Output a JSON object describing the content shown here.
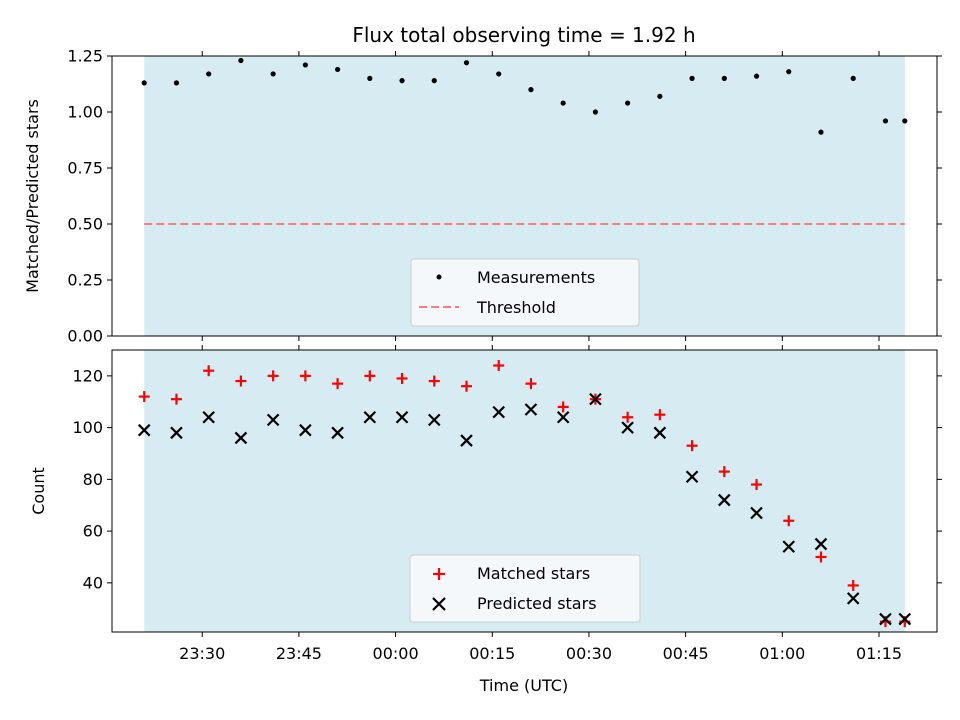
{
  "chart_data": [
    {
      "type": "scatter",
      "title": "Flux total observing time = 1.92 h",
      "ylabel": "Matched/Predicted stars",
      "xlabel": "",
      "ylim": [
        0,
        1.25
      ],
      "xlim": [
        "23:16",
        "01:24"
      ],
      "observing_window": [
        "23:21",
        "01:19"
      ],
      "yticks": [
        "0.00",
        "0.25",
        "0.50",
        "0.75",
        "1.00",
        "1.25"
      ],
      "legend_placement": "lower-center",
      "series": [
        {
          "name": "Measurements",
          "color": "#000000",
          "marker": "dot",
          "x": [
            "23:21",
            "23:26",
            "23:31",
            "23:36",
            "23:41",
            "23:46",
            "23:51",
            "23:56",
            "00:01",
            "00:06",
            "00:11",
            "00:16",
            "00:21",
            "00:26",
            "00:31",
            "00:36",
            "00:41",
            "00:46",
            "00:51",
            "00:56",
            "01:01",
            "01:06",
            "01:11",
            "01:16",
            "01:19"
          ],
          "y": [
            1.13,
            1.13,
            1.17,
            1.23,
            1.17,
            1.21,
            1.19,
            1.15,
            1.14,
            1.14,
            1.22,
            1.17,
            1.1,
            1.04,
            1.0,
            1.04,
            1.07,
            1.15,
            1.15,
            1.16,
            1.18,
            0.91,
            1.15,
            0.96,
            0.96
          ]
        },
        {
          "name": "Threshold",
          "color": "#f08080",
          "style": "dashed",
          "y": 0.5
        }
      ]
    },
    {
      "type": "scatter",
      "xlabel": "Time (UTC)",
      "ylabel": "Count",
      "ylim": [
        21,
        130
      ],
      "xlim": [
        "23:16",
        "01:24"
      ],
      "observing_window": [
        "23:21",
        "01:19"
      ],
      "xticks": [
        "23:30",
        "23:45",
        "00:00",
        "00:15",
        "00:30",
        "00:45",
        "01:00",
        "01:15"
      ],
      "yticks": [
        "40",
        "60",
        "80",
        "100",
        "120"
      ],
      "legend_placement": "lower-center",
      "series": [
        {
          "name": "Matched stars",
          "color": "#ff0000",
          "marker": "plus",
          "x": [
            "23:21",
            "23:26",
            "23:31",
            "23:36",
            "23:41",
            "23:46",
            "23:51",
            "23:56",
            "00:01",
            "00:06",
            "00:11",
            "00:16",
            "00:21",
            "00:26",
            "00:31",
            "00:36",
            "00:41",
            "00:46",
            "00:51",
            "00:56",
            "01:01",
            "01:06",
            "01:11",
            "01:16",
            "01:19"
          ],
          "y": [
            112,
            111,
            122,
            118,
            120,
            120,
            117,
            120,
            119,
            118,
            116,
            124,
            117,
            108,
            111,
            104,
            105,
            93,
            83,
            78,
            64,
            50,
            39,
            25,
            25
          ]
        },
        {
          "name": "Predicted stars",
          "color": "#000000",
          "marker": "x",
          "x": [
            "23:21",
            "23:26",
            "23:31",
            "23:36",
            "23:41",
            "23:46",
            "23:51",
            "23:56",
            "00:01",
            "00:06",
            "00:11",
            "00:16",
            "00:21",
            "00:26",
            "00:31",
            "00:36",
            "00:41",
            "00:46",
            "00:51",
            "00:56",
            "01:01",
            "01:06",
            "01:11",
            "01:16",
            "01:19"
          ],
          "y": [
            99,
            98,
            104,
            96,
            103,
            99,
            98,
            104,
            104,
            103,
            95,
            106,
            107,
            104,
            111,
            100,
            98,
            81,
            72,
            67,
            54,
            55,
            34,
            26,
            26
          ]
        }
      ]
    }
  ],
  "colors": {
    "shade": "#add8e6",
    "legend_bg": "#f4f8fb"
  }
}
